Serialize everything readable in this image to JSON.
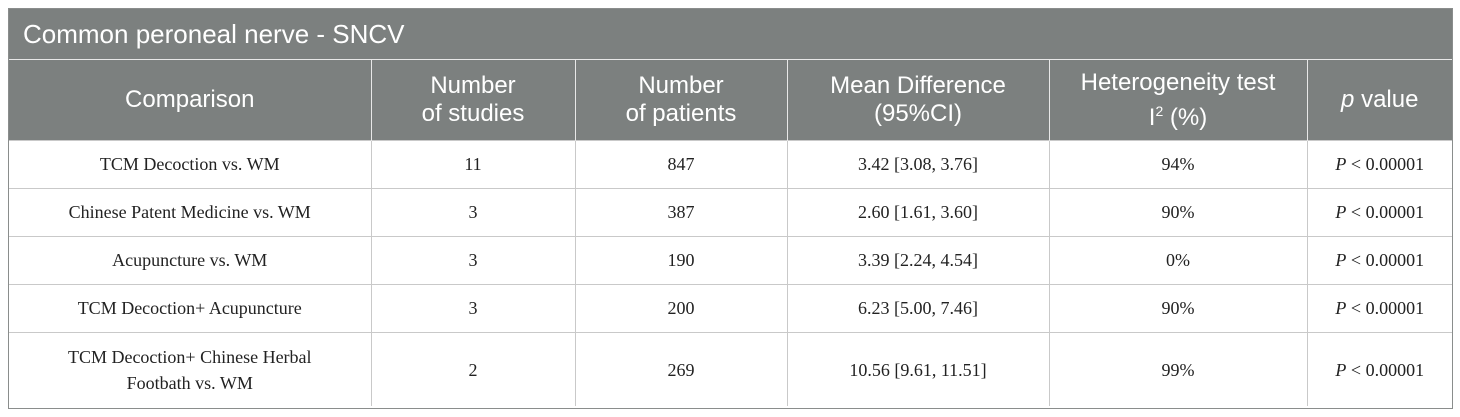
{
  "caption": "Common peroneal nerve - SNCV",
  "headers": {
    "comparison": "Comparison",
    "studies_1": "Number",
    "studies_2": "of studies",
    "patients_1": "Number",
    "patients_2": "of patients",
    "md_1": "Mean Difference",
    "md_2": "(95%CI)",
    "het_1": "Heterogeneity test",
    "het_i": "I",
    "het_sup": "2",
    "het_pct": " (%)",
    "p_italic": "p",
    "p_rest": " value"
  },
  "rows": [
    {
      "comparison": "TCM Decoction vs. WM",
      "studies": "11",
      "patients": "847",
      "md": "3.42 [3.08, 3.76]",
      "het": "94%",
      "p_letter": "P",
      "p_val": " < 0.00001"
    },
    {
      "comparison": "Chinese Patent Medicine vs. WM",
      "studies": "3",
      "patients": "387",
      "md": "2.60 [1.61, 3.60]",
      "het": "90%",
      "p_letter": "P",
      "p_val": " < 0.00001"
    },
    {
      "comparison": "Acupuncture vs. WM",
      "studies": "3",
      "patients": "190",
      "md": "3.39 [2.24, 4.54]",
      "het": "0%",
      "p_letter": "P",
      "p_val": " < 0.00001"
    },
    {
      "comparison": "TCM Decoction+ Acupuncture",
      "studies": "3",
      "patients": "200",
      "md": "6.23 [5.00, 7.46]",
      "het": "90%",
      "p_letter": "P",
      "p_val": " < 0.00001"
    },
    {
      "comparison_1": "TCM Decoction+ Chinese Herbal",
      "comparison_2": "Footbath vs. WM",
      "studies": "2",
      "patients": "269",
      "md": "10.56 [9.61, 11.51]",
      "het": "99%",
      "p_letter": "P",
      "p_val": " < 0.00001"
    }
  ],
  "colors": {
    "header_bg": "#7c807f",
    "header_text": "#ffffff",
    "grid": "#c9c9c9"
  }
}
